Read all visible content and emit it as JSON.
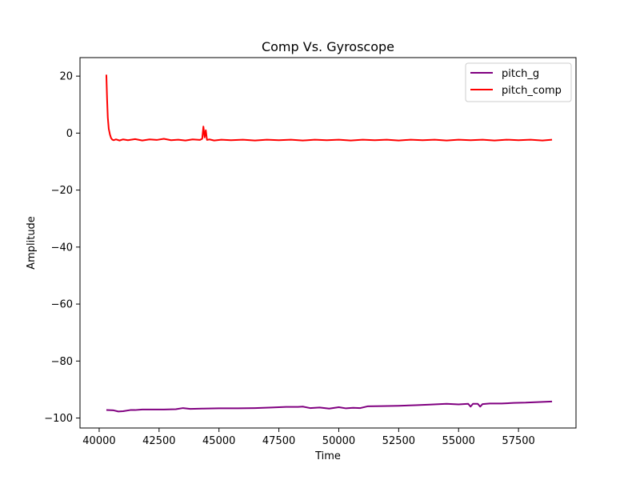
{
  "chart_data": {
    "type": "line",
    "title": "Comp Vs. Gyroscope",
    "xlabel": "Time",
    "ylabel": "Amplitude",
    "xlim": [
      39200,
      59900
    ],
    "ylim": [
      -103.5,
      26.5
    ],
    "xticks": [
      40000,
      42500,
      45000,
      47500,
      50000,
      52500,
      55000,
      57500
    ],
    "xtick_labels": [
      "40000",
      "42500",
      "45000",
      "47500",
      "50000",
      "52500",
      "55000",
      "57500"
    ],
    "yticks": [
      20,
      0,
      -20,
      -40,
      -60,
      -80,
      -100
    ],
    "ytick_labels": [
      "20",
      "0",
      "−20",
      "−40",
      "−60",
      "−80",
      "−100"
    ],
    "grid": false,
    "legend_position": "top-right",
    "series": [
      {
        "name": "pitch_g",
        "color": "#800080",
        "x": [
          40300,
          40600,
          40800,
          41000,
          41300,
          41500,
          41800,
          42200,
          42700,
          43200,
          43500,
          43800,
          44300,
          45000,
          45800,
          46500,
          47200,
          47800,
          48300,
          48500,
          48800,
          49200,
          49600,
          50000,
          50300,
          50600,
          50900,
          51200,
          51800,
          52500,
          53200,
          53800,
          54500,
          55000,
          55400,
          55500,
          55600,
          55700,
          55800,
          55900,
          56000,
          56300,
          56800,
          57300,
          57800,
          58300,
          58900
        ],
        "y": [
          -97.2,
          -97.3,
          -97.7,
          -97.6,
          -97.2,
          -97.2,
          -97.0,
          -97.0,
          -97.0,
          -96.9,
          -96.5,
          -96.8,
          -96.7,
          -96.6,
          -96.6,
          -96.5,
          -96.3,
          -96.1,
          -96.1,
          -96.0,
          -96.5,
          -96.3,
          -96.7,
          -96.2,
          -96.6,
          -96.4,
          -96.5,
          -95.9,
          -95.8,
          -95.7,
          -95.5,
          -95.3,
          -95.0,
          -95.2,
          -95.0,
          -96.0,
          -95.0,
          -95.0,
          -95.0,
          -96.0,
          -95.1,
          -94.9,
          -94.9,
          -94.7,
          -94.6,
          -94.4,
          -94.2
        ]
      },
      {
        "name": "pitch_comp",
        "color": "#ff0000",
        "x": [
          40300,
          40330,
          40360,
          40400,
          40450,
          40500,
          40550,
          40600,
          40700,
          40850,
          41000,
          41200,
          41500,
          41800,
          42100,
          42400,
          42700,
          43000,
          43300,
          43600,
          43900,
          44200,
          44300,
          44350,
          44400,
          44450,
          44500,
          44600,
          44800,
          45100,
          45500,
          46000,
          46500,
          47000,
          47500,
          48000,
          48500,
          49000,
          49500,
          50000,
          50500,
          51000,
          51500,
          52000,
          52500,
          53000,
          53500,
          54000,
          54500,
          55000,
          55500,
          56000,
          56500,
          57000,
          57500,
          58000,
          58500,
          58900
        ],
        "y": [
          20.5,
          12.0,
          5.5,
          1.5,
          -0.5,
          -1.8,
          -2.3,
          -2.5,
          -2.2,
          -2.6,
          -2.2,
          -2.5,
          -2.1,
          -2.6,
          -2.2,
          -2.4,
          -2.0,
          -2.5,
          -2.3,
          -2.6,
          -2.2,
          -2.4,
          -2.0,
          2.3,
          -1.5,
          1.0,
          -2.4,
          -2.2,
          -2.6,
          -2.3,
          -2.5,
          -2.3,
          -2.6,
          -2.3,
          -2.5,
          -2.3,
          -2.6,
          -2.3,
          -2.5,
          -2.3,
          -2.6,
          -2.3,
          -2.5,
          -2.3,
          -2.6,
          -2.3,
          -2.5,
          -2.3,
          -2.6,
          -2.3,
          -2.5,
          -2.3,
          -2.6,
          -2.3,
          -2.5,
          -2.3,
          -2.6,
          -2.3
        ]
      }
    ]
  }
}
